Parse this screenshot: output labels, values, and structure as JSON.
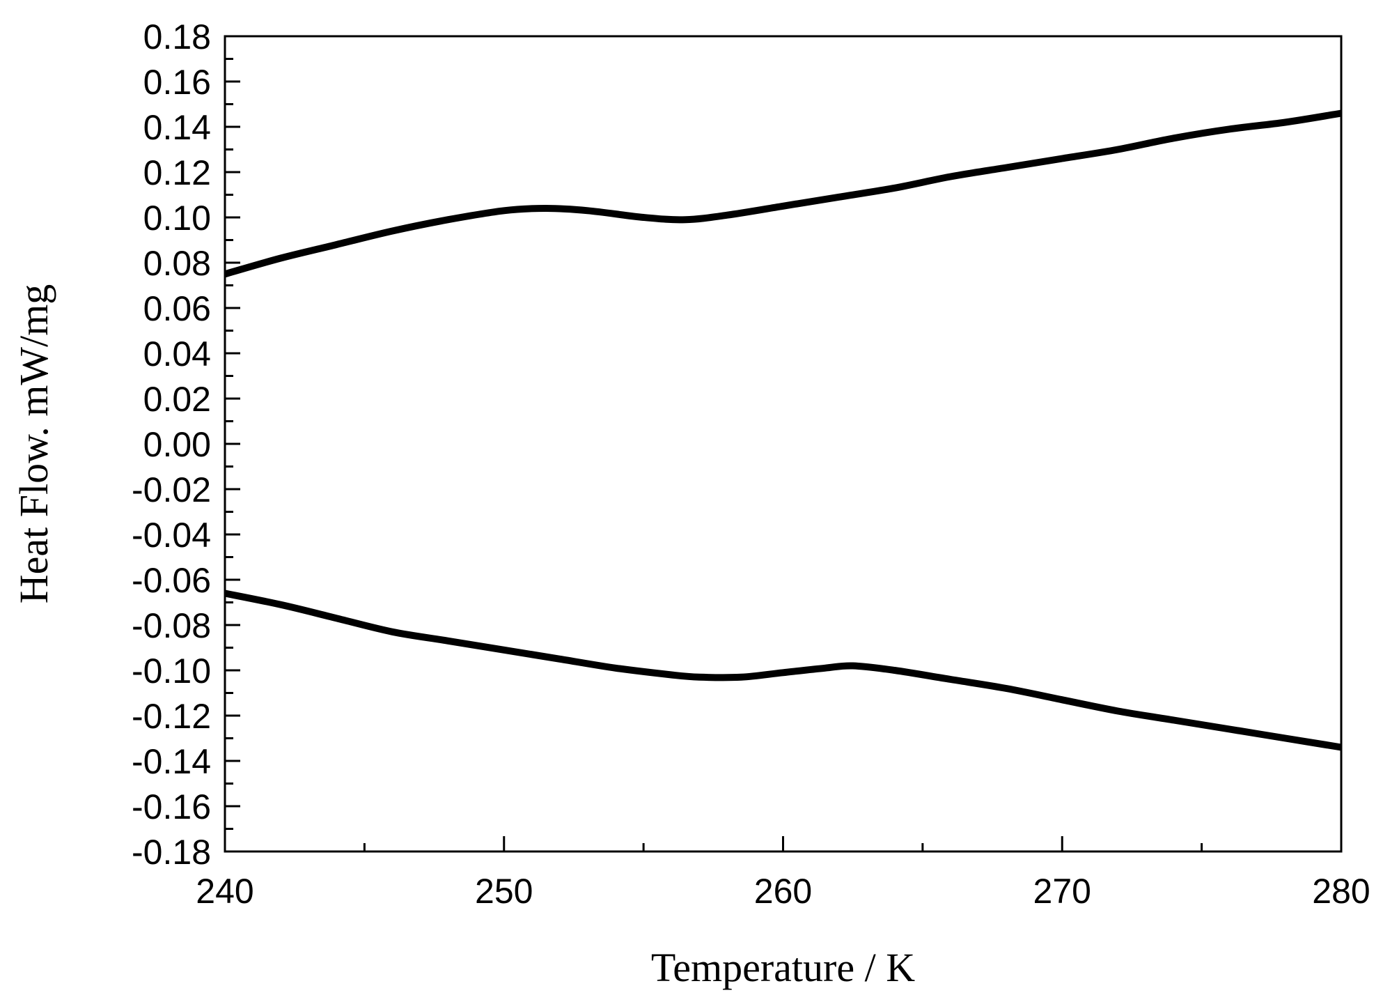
{
  "chart_data": {
    "type": "line",
    "xlabel": "Temperature / K",
    "ylabel": "Heat Flow. mW/mg",
    "xlim": [
      240,
      280
    ],
    "ylim": [
      -0.18,
      0.18
    ],
    "x_ticks": [
      240,
      250,
      260,
      270,
      280
    ],
    "x_tick_labels": [
      "240",
      "250",
      "260",
      "270",
      "280"
    ],
    "x_minor_step": 5,
    "y_ticks": [
      0.18,
      0.16,
      0.14,
      0.12,
      0.1,
      0.08,
      0.06,
      0.04,
      0.02,
      0.0,
      -0.02,
      -0.04,
      -0.06,
      -0.08,
      -0.1,
      -0.12,
      -0.14,
      -0.16,
      -0.18
    ],
    "y_tick_labels": [
      "0.18",
      "0.16",
      "0.14",
      "0.12",
      "0.10",
      "0.08",
      "0.06",
      "0.04",
      "0.02",
      "0.00",
      "-0.02",
      "-0.04",
      "-0.06",
      "-0.08",
      "-0.10",
      "-0.12",
      "-0.14",
      "-0.16",
      "-0.18"
    ],
    "y_minor_step": 0.01,
    "grid": false,
    "legend": "none",
    "line_color": "#000000",
    "series": [
      {
        "x": [
          240,
          242,
          244,
          246,
          248,
          250,
          251.5,
          253,
          255,
          256.5,
          258,
          260,
          262,
          264,
          266,
          268,
          270,
          272,
          274,
          276,
          278,
          280
        ],
        "y": [
          0.075,
          0.082,
          0.088,
          0.094,
          0.099,
          0.103,
          0.104,
          0.103,
          0.1,
          0.099,
          0.101,
          0.105,
          0.109,
          0.113,
          0.118,
          0.122,
          0.126,
          0.13,
          0.135,
          0.139,
          0.142,
          0.146
        ]
      },
      {
        "x": [
          240,
          242,
          244,
          246,
          248,
          250,
          252,
          254,
          256,
          257,
          258.5,
          260,
          261.5,
          262.5,
          264,
          266,
          268,
          270,
          272,
          274,
          276,
          278,
          280
        ],
        "y": [
          -0.066,
          -0.071,
          -0.077,
          -0.083,
          -0.087,
          -0.091,
          -0.095,
          -0.099,
          -0.102,
          -0.103,
          -0.103,
          -0.101,
          -0.099,
          -0.098,
          -0.1,
          -0.104,
          -0.108,
          -0.113,
          -0.118,
          -0.122,
          -0.126,
          -0.13,
          -0.134
        ]
      }
    ]
  }
}
